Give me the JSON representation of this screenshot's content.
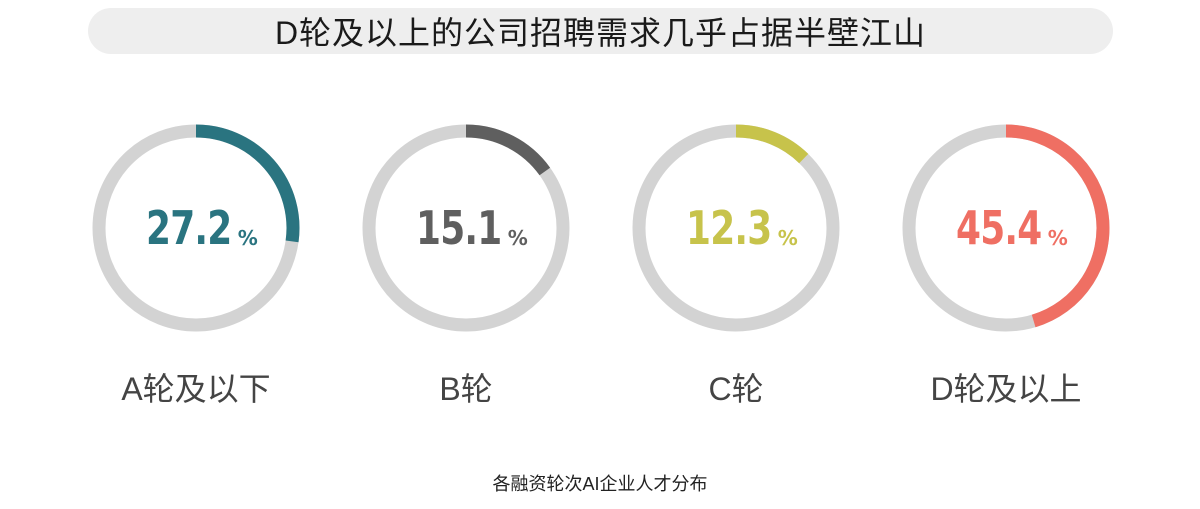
{
  "title": "D轮及以上的公司招聘需求几乎占据半壁江山",
  "caption": "各融资轮次AI企业人才分布",
  "colors": {
    "track": "#d3d3d3",
    "a": "#2a7480",
    "b": "#5f5f5f",
    "c": "#c7c34b",
    "d": "#ef6f63"
  },
  "chart_data": {
    "type": "pie",
    "title": "D轮及以上的公司招聘需求几乎占据半壁江山",
    "caption": "各融资轮次AI企业人才分布",
    "unit": "%",
    "categories": [
      "A轮及以下",
      "B轮",
      "C轮",
      "D轮及以上"
    ],
    "values": [
      27.2,
      15.1,
      12.3,
      45.4
    ],
    "labels": [
      "27.2",
      "15.1",
      "12.3",
      "45.4"
    ],
    "colors": [
      "#2a7480",
      "#5f5f5f",
      "#c7c34b",
      "#ef6f63"
    ],
    "ylim": [
      0,
      100
    ]
  }
}
